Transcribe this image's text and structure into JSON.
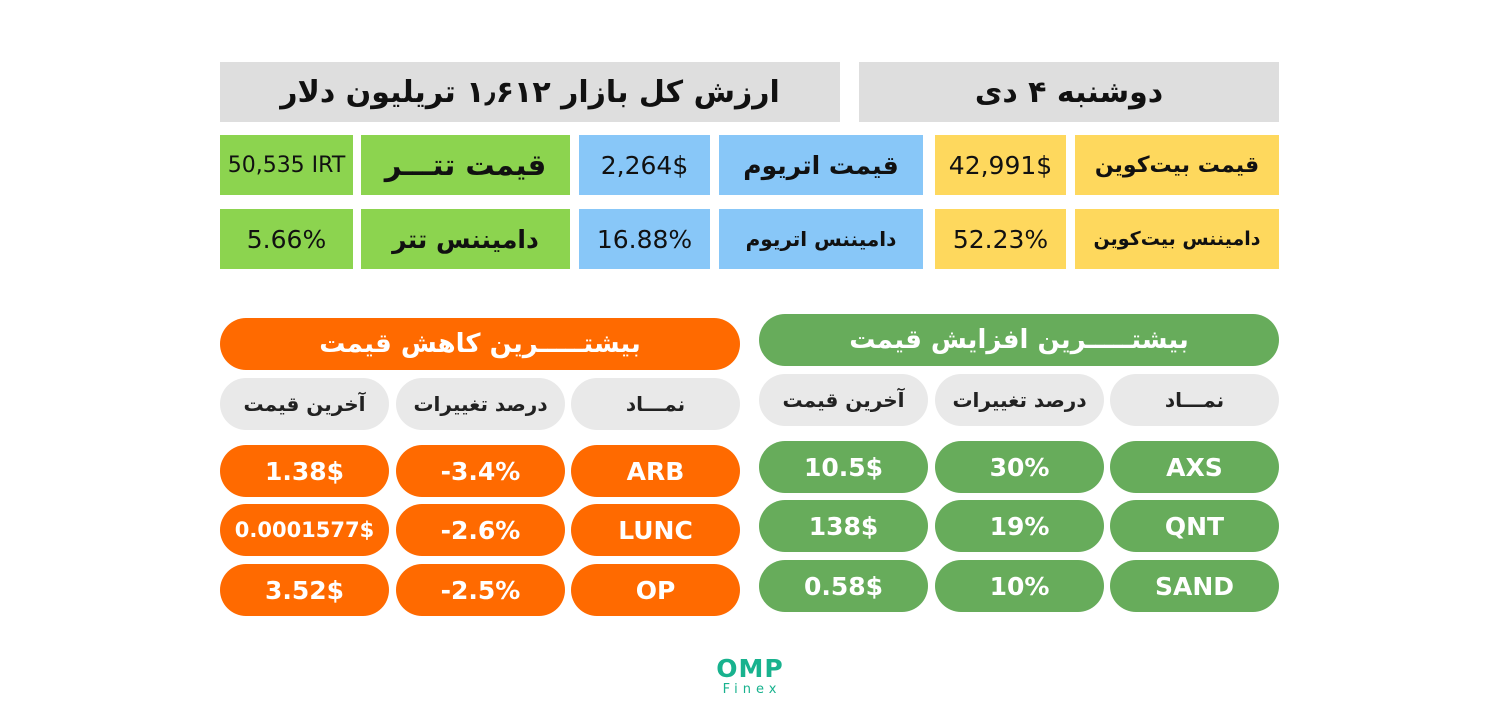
{
  "header": {
    "date": "دوشنبه ۴ دی",
    "market_cap": "ارزش کل بازار ۱٫۶۱۲ تریلیون دلار"
  },
  "stats": {
    "btc_price_label": "قیمت بیت‌کوین",
    "btc_price": "42,991$",
    "eth_price_label": "قیمت اتریوم",
    "eth_price": "2,264$",
    "usdt_price_label": "قیمت تتـــر",
    "usdt_price": "50,535 IRT",
    "btc_dom_label": "دامیننس بیت‌کوین",
    "btc_dom": "52.23%",
    "eth_dom_label": "دامیننس اتریوم",
    "eth_dom": "16.88%",
    "usdt_dom_label": "دامیننس تتر",
    "usdt_dom": "5.66%"
  },
  "gainers": {
    "title": "بیشتـــــرین افزایش قیمت",
    "col_symbol": "نمـــاد",
    "col_change": "درصد تغییرات",
    "col_price": "آخرین قیمت",
    "rows": [
      {
        "symbol": "AXS",
        "change": "30%",
        "price": "10.5$"
      },
      {
        "symbol": "QNT",
        "change": "19%",
        "price": "138$"
      },
      {
        "symbol": "SAND",
        "change": "10%",
        "price": "0.58$"
      }
    ]
  },
  "losers": {
    "title": "بیشتـــــرین کاهش قیمت",
    "col_symbol": "نمـــاد",
    "col_change": "درصد تغییرات",
    "col_price": "آخرین قیمت",
    "rows": [
      {
        "symbol": "ARB",
        "change": "-3.4%",
        "price": "1.38$"
      },
      {
        "symbol": "LUNC",
        "change": "-2.6%",
        "price": "0.0001577$"
      },
      {
        "symbol": "OP",
        "change": "-2.5%",
        "price": "3.52$"
      }
    ]
  },
  "logo": {
    "name": "OMP",
    "sub": "Finex"
  },
  "colors": {
    "gray": "#dedede",
    "yellow": "#fed85d",
    "blue": "#88c7f8",
    "green": "#8cd44f",
    "gainer_green": "#67ac5b",
    "loser_orange": "#ff6a00",
    "logo": "#18b28e"
  }
}
